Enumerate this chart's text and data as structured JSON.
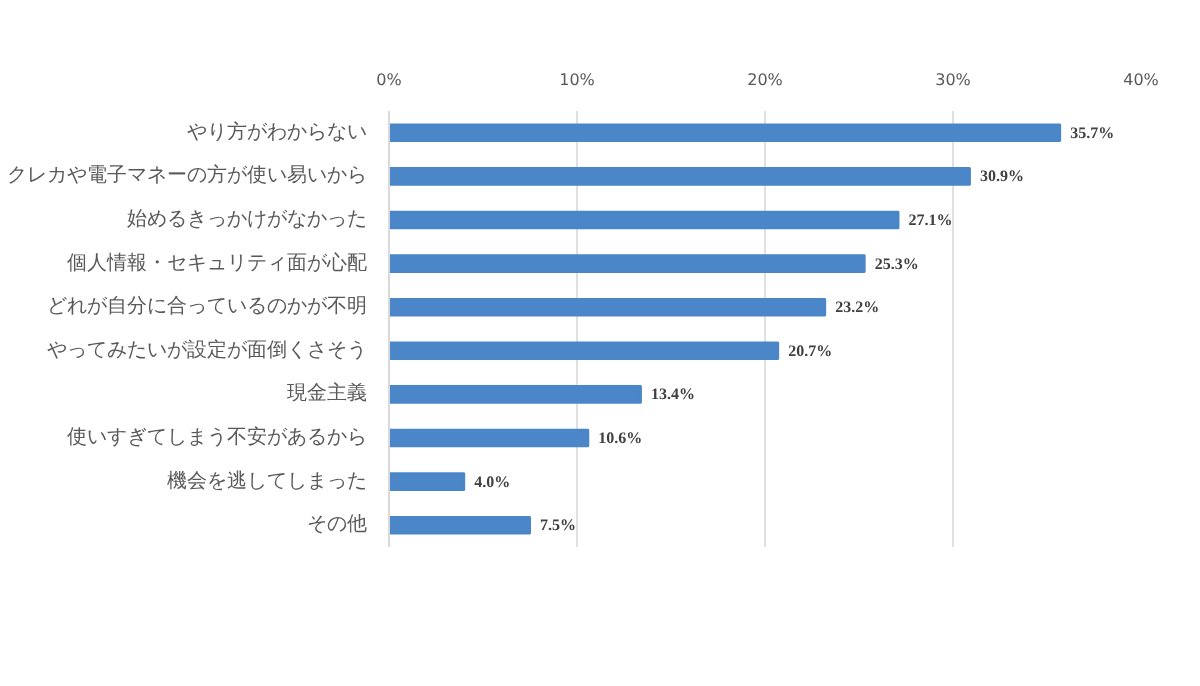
{
  "chart_data": {
    "type": "bar",
    "orientation": "horizontal",
    "categories": [
      "やり方がわからない",
      "クレカや電子マネーの方が使い易いから",
      "始めるきっかけがなかった",
      "個人情報・セキュリティ面が心配",
      "どれが自分に合っているのかが不明",
      "やってみたいが設定が面倒くさそう",
      "現金主義",
      "使いすぎてしまう不安があるから",
      "機会を逃してしまった",
      "その他"
    ],
    "values": [
      35.7,
      30.9,
      27.1,
      25.3,
      23.2,
      20.7,
      13.4,
      10.6,
      4.0,
      7.5
    ],
    "value_labels": [
      "35.7%",
      "30.9%",
      "27.1%",
      "25.3%",
      "23.2%",
      "20.7%",
      "13.4%",
      "10.6%",
      "4.0%",
      "7.5%"
    ],
    "color": "#4a86c8",
    "xlim": [
      0,
      40
    ],
    "xticks": [
      {
        "value": 0,
        "label": "0%"
      },
      {
        "value": 10,
        "label": "10%"
      },
      {
        "value": 20,
        "label": "20%"
      },
      {
        "value": 30,
        "label": "30%"
      },
      {
        "value": 40,
        "label": "40%"
      }
    ],
    "grid": "x"
  }
}
